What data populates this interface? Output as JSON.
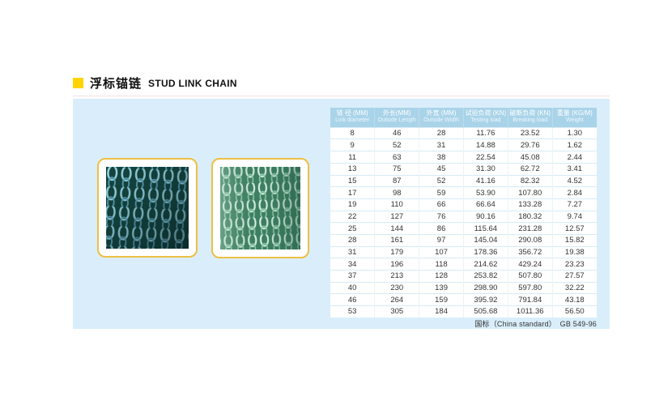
{
  "header": {
    "title_zh": "浮标锚链",
    "title_en": "STUD LINK CHAIN"
  },
  "table": {
    "columns": [
      {
        "zh": "链 径 (MM)",
        "en": "Link diameter"
      },
      {
        "zh": "外长(MM)",
        "en": "Outside Length"
      },
      {
        "zh": "外宽 (MM)",
        "en": "Outside Width"
      },
      {
        "zh": "试验负荷 (KN)",
        "en": "Testing load"
      },
      {
        "zh": "破断负荷 (KN)",
        "en": "Breaking load"
      },
      {
        "zh": "重量 (KG/M)",
        "en": "Weight"
      }
    ],
    "rows": [
      [
        "8",
        "46",
        "28",
        "11.76",
        "23.52",
        "1.30"
      ],
      [
        "9",
        "52",
        "31",
        "14.88",
        "29.76",
        "1.62"
      ],
      [
        "11",
        "63",
        "38",
        "22.54",
        "45.08",
        "2.44"
      ],
      [
        "13",
        "75",
        "45",
        "31.30",
        "62.72",
        "3.41"
      ],
      [
        "15",
        "87",
        "52",
        "41.16",
        "82.32",
        "4.52"
      ],
      [
        "17",
        "98",
        "59",
        "53.90",
        "107.80",
        "2.84"
      ],
      [
        "19",
        "110",
        "66",
        "66.64",
        "133.28",
        "7.27"
      ],
      [
        "22",
        "127",
        "76",
        "90.16",
        "180.32",
        "9.74"
      ],
      [
        "25",
        "144",
        "86",
        "115.64",
        "231.28",
        "12.57"
      ],
      [
        "28",
        "161",
        "97",
        "145.04",
        "290.08",
        "15.82"
      ],
      [
        "31",
        "179",
        "107",
        "178.36",
        "356.72",
        "19.38"
      ],
      [
        "34",
        "196",
        "118",
        "214.62",
        "429.24",
        "23.23"
      ],
      [
        "37",
        "213",
        "128",
        "253.82",
        "507.80",
        "27.57"
      ],
      [
        "40",
        "230",
        "139",
        "298.90",
        "597.80",
        "32.22"
      ],
      [
        "46",
        "264",
        "159",
        "395.92",
        "791.84",
        "43.18"
      ],
      [
        "53",
        "305",
        "184",
        "505.68",
        "1011.36",
        "56.50"
      ]
    ],
    "footer_note": "国标（China standard）　GB 549-96"
  },
  "photos": [
    {
      "desc": "close-up photo of dark blue-green stud link chains"
    },
    {
      "desc": "close-up photo of light green stud link chains"
    }
  ],
  "colors": {
    "accent_yellow": "#ffd401",
    "panel_bg": "#d9eefa",
    "table_header_bg": "#a9d3e8",
    "card_border": "#edbf45"
  }
}
